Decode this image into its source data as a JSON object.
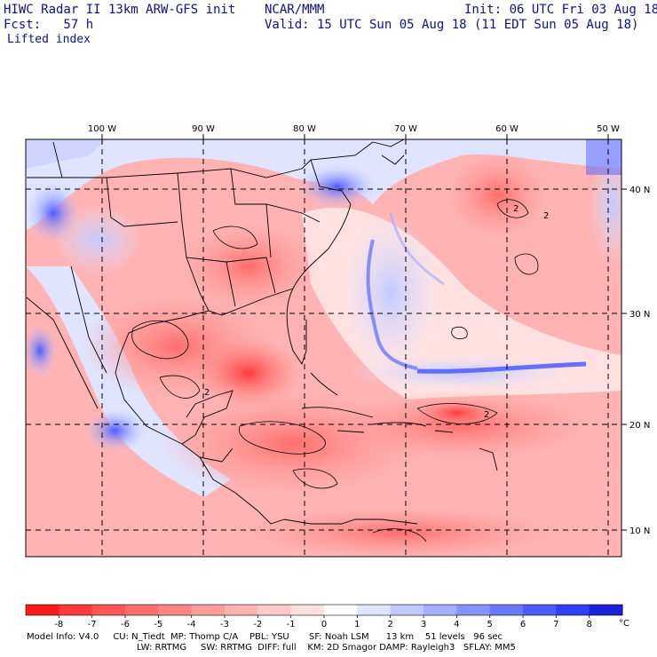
{
  "header": {
    "model_title": "HIWC Radar II 13km ARW-GFS init",
    "org": "NCAR/MMM",
    "init": "Init: 06 UTC Fri 03 Aug 18",
    "fcst": "Fcst:   57 h",
    "valid": "Valid: 15 UTC Sun 05 Aug 18 (11 EDT Sun 05 Aug 18)",
    "field": "Lifted index"
  },
  "map": {
    "lon_labels": [
      "100 W",
      "90 W",
      "80 W",
      "70 W",
      "60 W",
      "50 W"
    ],
    "lat_labels": [
      "40 N",
      "30 N",
      "20 N",
      "10 N"
    ],
    "contour_labels": [
      "2",
      "2",
      "2",
      "2"
    ]
  },
  "colorbar": {
    "unit": "°C",
    "ticks": [
      "-8",
      "-7",
      "-6",
      "-5",
      "-4",
      "-3",
      "-2",
      "-1",
      "0",
      "1",
      "2",
      "3",
      "4",
      "5",
      "6",
      "7",
      "8"
    ],
    "colors": [
      "#ff1a1a",
      "#ff3a3a",
      "#ff5555",
      "#ff6d6d",
      "#ff8585",
      "#ff9d9d",
      "#ffb3b3",
      "#ffc9c9",
      "#ffe1e1",
      "#ffffff",
      "#e0e4ff",
      "#c3c9ff",
      "#a6aeff",
      "#8893ff",
      "#6b78ff",
      "#4d5cff",
      "#3040f5",
      "#1a22dd"
    ]
  },
  "footer": {
    "line1": "Model Info: V4.0     CU: N_Tiedt  MP: Thomp C/A    PBL: YSU       SF: Noah LSM      13 km    51 levels   96 sec",
    "line2": "LW: RRTMG     SW: RRTMG  DIFF: full    KM: 2D Smagor DAMP: Rayleigh3   SFLAY: MM5"
  }
}
